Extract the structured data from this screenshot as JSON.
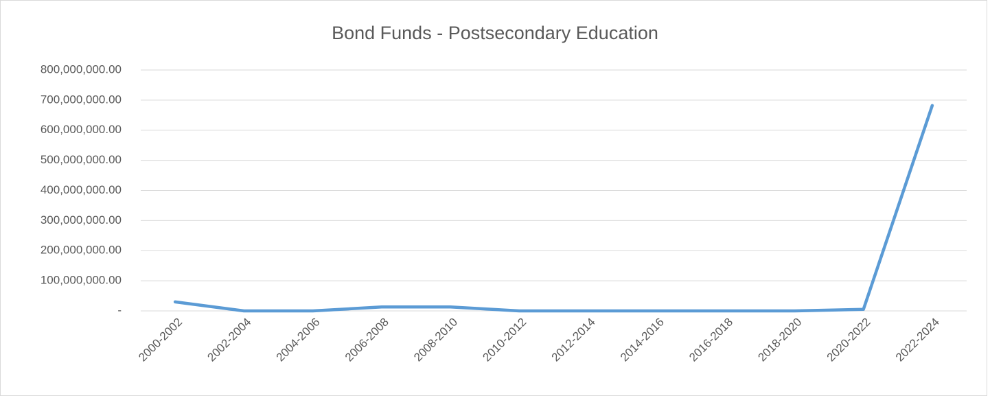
{
  "chart_data": {
    "type": "line",
    "title": "Bond Funds - Postsecondary Education",
    "categories": [
      "2000-2002",
      "2002-2004",
      "2004-2006",
      "2006-2008",
      "2008-2010",
      "2010-2012",
      "2012-2014",
      "2014-2016",
      "2016-2018",
      "2018-2020",
      "2020-2022",
      "2022-2024"
    ],
    "series": [
      {
        "name": "Bond Funds",
        "color": "#5b9bd5",
        "values": [
          30000000,
          0,
          0,
          13000000,
          13000000,
          0,
          0,
          0,
          0,
          0,
          5000000,
          682000000
        ]
      }
    ],
    "ylim": [
      0,
      800000000
    ],
    "yticks": [
      {
        "value": 0,
        "label": "-"
      },
      {
        "value": 100000000,
        "label": "100,000,000.00"
      },
      {
        "value": 200000000,
        "label": "200,000,000.00"
      },
      {
        "value": 300000000,
        "label": "300,000,000.00"
      },
      {
        "value": 400000000,
        "label": "400,000,000.00"
      },
      {
        "value": 500000000,
        "label": "500,000,000.00"
      },
      {
        "value": 600000000,
        "label": "600,000,000.00"
      },
      {
        "value": 700000000,
        "label": "700,000,000.00"
      },
      {
        "value": 800000000,
        "label": "800,000,000.00"
      }
    ],
    "grid": true
  }
}
